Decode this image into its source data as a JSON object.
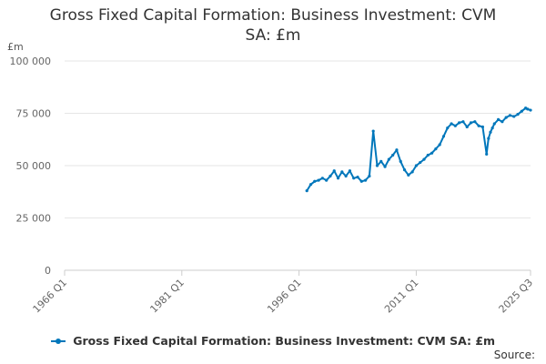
{
  "chart_data": {
    "type": "line",
    "title": "Gross Fixed Capital Formation: Business Investment: CVM SA: £m",
    "ylabel": "£m",
    "xlabel": "",
    "ylim": [
      0,
      100000
    ],
    "xlim": [
      1966,
      2025.625
    ],
    "y_ticks": [
      {
        "value": 0,
        "label": "0"
      },
      {
        "value": 25000,
        "label": "25 000"
      },
      {
        "value": 50000,
        "label": "50 000"
      },
      {
        "value": 75000,
        "label": "75 000"
      },
      {
        "value": 100000,
        "label": "100 000"
      }
    ],
    "x_ticks": [
      {
        "value": 1966,
        "label": "1966 Q1"
      },
      {
        "value": 1981,
        "label": "1981 Q1"
      },
      {
        "value": 1996,
        "label": "1996 Q1"
      },
      {
        "value": 2011,
        "label": "2011 Q1"
      },
      {
        "value": 2025.625,
        "label": "2025 Q3"
      }
    ],
    "series": [
      {
        "name": "Gross Fixed Capital Formation: Business Investment: CVM SA: £m",
        "color": "#0077bb",
        "x": [
          1997.0,
          1997.5,
          1998.0,
          1998.5,
          1999.0,
          1999.5,
          2000.0,
          2000.5,
          2001.0,
          2001.5,
          2002.0,
          2002.5,
          2003.0,
          2003.5,
          2004.0,
          2004.5,
          2005.0,
          2005.5,
          2006.0,
          2006.5,
          2007.0,
          2007.5,
          2008.0,
          2008.5,
          2009.0,
          2009.5,
          2010.0,
          2010.5,
          2011.0,
          2011.5,
          2012.0,
          2012.5,
          2013.0,
          2013.5,
          2014.0,
          2014.5,
          2015.0,
          2015.5,
          2016.0,
          2016.5,
          2017.0,
          2017.5,
          2018.0,
          2018.5,
          2019.0,
          2019.5,
          2020.0,
          2020.25,
          2020.5,
          2020.75,
          2021.0,
          2021.5,
          2022.0,
          2022.5,
          2023.0,
          2023.5,
          2024.0,
          2024.5,
          2025.0,
          2025.25,
          2025.625
        ],
        "values": [
          38000,
          41000,
          42500,
          43000,
          44000,
          43000,
          45000,
          47500,
          44000,
          47000,
          45000,
          47500,
          44000,
          44500,
          42500,
          43000,
          45000,
          66500,
          50000,
          52000,
          49500,
          53000,
          55000,
          57500,
          52000,
          48000,
          45500,
          47000,
          50000,
          51500,
          53000,
          55000,
          56000,
          58000,
          60000,
          64000,
          68000,
          70000,
          69000,
          70500,
          71000,
          68500,
          70500,
          71000,
          69000,
          68500,
          55500,
          63000,
          66000,
          68000,
          70000,
          72000,
          71000,
          73000,
          74000,
          73500,
          74500,
          76000,
          77500,
          77000,
          76500
        ]
      }
    ]
  },
  "legend": {
    "label": "Gross Fixed Capital Formation: Business Investment: CVM SA: £m"
  },
  "source": {
    "label": "Source:"
  }
}
